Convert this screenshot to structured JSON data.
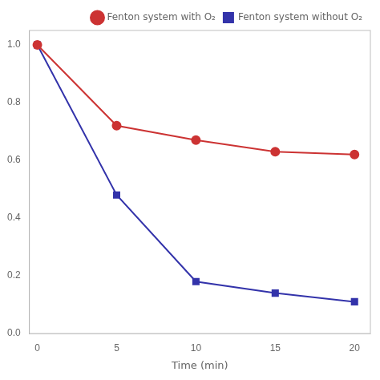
{
  "chart_data": {
    "type": "line",
    "x_label": "Time (min)",
    "x": [
      0,
      5,
      10,
      15,
      20
    ],
    "series": [
      {
        "name": "Fenton system with O₂",
        "color": "#cc3333",
        "marker": "circle",
        "values": [
          1.0,
          0.72,
          0.67,
          0.63,
          0.62
        ]
      },
      {
        "name": "Fenton system without O₂",
        "color": "#3333aa",
        "marker": "square",
        "values": [
          1.0,
          0.48,
          0.18,
          0.14,
          0.11
        ]
      }
    ],
    "xlim": [
      -0.5,
      21
    ],
    "xticks": [
      0,
      5,
      10,
      15,
      20
    ],
    "ylim": [
      0.0,
      1.05
    ],
    "yticks": [
      {
        "value": 0.0,
        "label": "0.0"
      },
      0.2,
      0.4,
      0.6,
      0.8,
      {
        "value": 1.0,
        "label": "1.0"
      }
    ],
    "grid": false,
    "legend": "upper right"
  }
}
